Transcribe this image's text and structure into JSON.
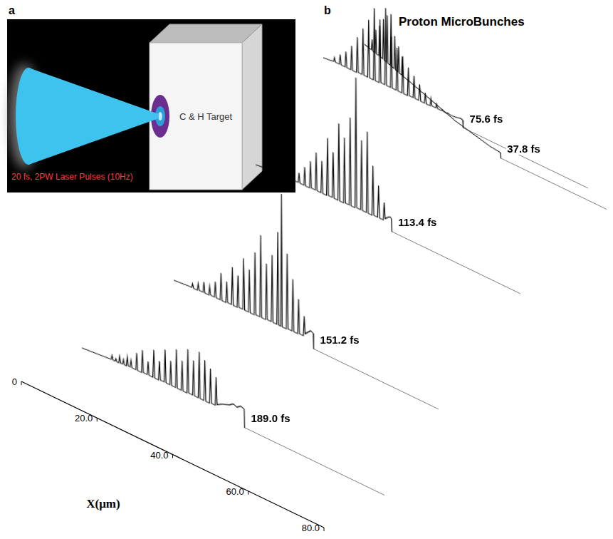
{
  "panel_a": {
    "letter": "a",
    "laser_label": "20 fs, 2PW Laser Pulses (10Hz)",
    "target_label": "C & H Target"
  },
  "chart_data": {
    "letter": "b",
    "type": "line",
    "title": "Proton MicroBunches",
    "x_label": "X(μm)",
    "xlim": [
      0,
      80
    ],
    "xticks": [
      0,
      {
        "value": 20,
        "label": "20.0"
      },
      {
        "value": 40,
        "label": "40.0"
      },
      {
        "value": 60,
        "label": "60.0"
      },
      {
        "value": 80,
        "label": "80.0"
      }
    ],
    "ylim": [
      0,
      100
    ],
    "tick_labels": "x",
    "grid": false,
    "series": [
      {
        "name": "37.8 fs",
        "color": "#000000",
        "x": [
          0,
          1,
          1.8,
          2,
          2.2,
          2.8,
          3,
          3.2,
          3.8,
          4,
          4.2,
          4.8,
          5,
          5.2,
          5.8,
          6,
          6.2,
          6.8,
          7,
          7.2,
          7.8,
          8,
          8.2,
          8.8,
          9,
          9.2,
          9.8,
          10,
          10.2,
          12,
          15,
          18,
          21,
          24,
          27,
          30,
          33,
          35.9,
          36,
          64
        ],
        "values": [
          34,
          33,
          32.5,
          40,
          32,
          31.5,
          48,
          31,
          31,
          52,
          30.5,
          30,
          58,
          29.5,
          29,
          62,
          28.5,
          28,
          64,
          27.5,
          27,
          50,
          26.5,
          26,
          44,
          25.5,
          25,
          38,
          24.5,
          23,
          20,
          17,
          14,
          11,
          9,
          7,
          5,
          4,
          0,
          0
        ]
      },
      {
        "name": "75.6 fs",
        "color": "#000000",
        "x": [
          0,
          1.5,
          2.75,
          3,
          3.25,
          4.25,
          4.5,
          4.75,
          5.75,
          6,
          6.25,
          7.25,
          7.5,
          7.75,
          8.75,
          9,
          9.25,
          10.25,
          10.5,
          10.75,
          11.75,
          12,
          12.25,
          13.25,
          13.5,
          13.75,
          14.75,
          15,
          15.25,
          16.25,
          16.5,
          16.75,
          17.75,
          18,
          18.25,
          19.25,
          19.5,
          19.75,
          20.75,
          21,
          21.25,
          22.25,
          22.5,
          22.75,
          23.75,
          24,
          24.25,
          25.25,
          25.5,
          25.75,
          26.75,
          27,
          27.25,
          28.25,
          28.5,
          28.75,
          29.75,
          30,
          30.25,
          31.25,
          31.5,
          31.75,
          32.75,
          33,
          33.25,
          34.5,
          35.5,
          36.5,
          36.9,
          37,
          70
        ],
        "values": [
          2,
          2.5,
          3,
          6,
          3,
          3,
          10,
          3,
          3,
          14,
          3,
          3,
          20,
          3,
          3,
          28,
          3.5,
          3.5,
          36,
          3.5,
          3.5,
          44,
          3.5,
          3.5,
          54,
          3.5,
          3.5,
          48,
          4,
          4,
          58,
          4,
          4,
          40,
          4,
          4,
          34,
          4,
          4,
          30,
          4,
          4,
          24,
          4.5,
          4.5,
          20,
          4.5,
          4.5,
          16,
          4.5,
          4.5,
          12,
          4.5,
          4.5,
          10,
          5,
          5,
          8,
          5,
          5,
          6,
          5,
          5,
          5.5,
          5,
          5,
          5.5,
          6,
          5.5,
          0,
          0
        ]
      },
      {
        "name": "113.4 fs",
        "color": "#000000",
        "x": [
          0,
          1.5,
          3,
          3.75,
          4,
          4.25,
          5.25,
          5.5,
          5.75,
          6.75,
          7,
          7.25,
          8.25,
          8.5,
          8.75,
          9.75,
          10,
          10.25,
          11.25,
          11.5,
          11.75,
          12.75,
          13,
          13.25,
          14.25,
          14.5,
          14.75,
          15.75,
          16,
          16.25,
          17.25,
          17.5,
          17.75,
          18.75,
          19,
          19.25,
          20.25,
          20.5,
          20.75,
          21.75,
          22,
          22.25,
          23.25,
          23.5,
          23.75,
          24.75,
          25,
          25.25,
          26.25,
          26.5,
          26.75,
          27.75,
          28,
          28.25,
          29.25,
          29.5,
          29.75,
          30.75,
          31,
          31.25,
          32.25,
          32.5,
          32.75,
          33.75,
          34,
          34.25,
          35,
          35.6,
          35.9,
          36,
          70
        ],
        "values": [
          1,
          1.5,
          2,
          2,
          4,
          2,
          2,
          6,
          2,
          2,
          8,
          2.5,
          2.5,
          7,
          2.5,
          2.5,
          12,
          3,
          3,
          10,
          3,
          3,
          16,
          3,
          3,
          22,
          3.5,
          3.5,
          30,
          3.5,
          3.5,
          26,
          3.5,
          3.5,
          44,
          4,
          4,
          36,
          4,
          4,
          58,
          4,
          4,
          50,
          4.5,
          4.5,
          66,
          4.5,
          4.5,
          96,
          5,
          5,
          54,
          5,
          5,
          62,
          5,
          5,
          40,
          5.5,
          5.5,
          28,
          5.5,
          5.5,
          18,
          7,
          9,
          10,
          9,
          0,
          0
        ]
      },
      {
        "name": "151.2 fs",
        "color": "#000000",
        "x": [
          0,
          2,
          4,
          4.75,
          5,
          5.25,
          6.25,
          6.5,
          6.75,
          7.75,
          8,
          8.25,
          9.25,
          9.5,
          9.75,
          10.75,
          11,
          11.25,
          12.25,
          12.5,
          12.75,
          13.75,
          14,
          14.25,
          15.25,
          15.5,
          15.75,
          16.75,
          17,
          17.25,
          18.25,
          18.5,
          18.75,
          19.75,
          20,
          20.25,
          21.25,
          21.5,
          21.75,
          22.75,
          23,
          23.25,
          24.25,
          24.5,
          24.75,
          25.75,
          26,
          26.25,
          27.25,
          27.5,
          27.75,
          28.3,
          28.5,
          28.7,
          29.75,
          30,
          30.25,
          31.25,
          31.5,
          31.75,
          32.75,
          33,
          33.25,
          34.25,
          34.5,
          34.75,
          35.5,
          36.2,
          36.9,
          37,
          70
        ],
        "values": [
          1,
          1.5,
          2,
          2,
          5,
          2,
          2,
          7,
          2.5,
          2.5,
          10,
          2.5,
          2.5,
          9,
          3,
          3,
          14,
          3,
          3,
          22,
          3,
          3,
          18,
          3.5,
          3.5,
          30,
          3.5,
          3.5,
          26,
          4,
          4,
          40,
          4,
          4,
          34,
          4,
          4,
          48,
          4.5,
          4.5,
          62,
          4.5,
          4.5,
          44,
          5,
          5,
          52,
          5,
          5,
          70,
          5,
          5,
          98,
          5,
          5,
          58,
          5.5,
          5.5,
          42,
          5.5,
          5.5,
          30,
          6,
          6,
          20,
          8,
          10,
          12,
          11,
          0,
          0
        ]
      },
      {
        "name": "189.0 fs",
        "color": "#000000",
        "x": [
          0,
          2,
          4,
          6,
          7.75,
          8,
          8.25,
          8.75,
          9,
          9.25,
          9.75,
          10,
          10.25,
          10.75,
          11,
          11.25,
          11.75,
          12,
          12.25,
          12.75,
          13,
          13.25,
          14.25,
          14.5,
          14.75,
          15.75,
          16,
          16.25,
          17.25,
          17.5,
          17.75,
          18.75,
          19,
          19.25,
          20.25,
          20.5,
          20.75,
          21.75,
          22,
          22.25,
          23.25,
          23.5,
          23.75,
          24.75,
          25,
          25.25,
          26.25,
          26.5,
          26.75,
          27.75,
          28,
          28.25,
          29.25,
          29.5,
          29.75,
          30.75,
          31,
          31.25,
          32.25,
          32.5,
          32.75,
          33.75,
          34,
          34.25,
          35.25,
          35.5,
          35.75,
          37,
          38,
          39,
          40,
          41,
          42,
          42.9,
          43,
          80
        ],
        "values": [
          1,
          1.5,
          2,
          2.5,
          3,
          6,
          3,
          3,
          5,
          3,
          3,
          8,
          3.5,
          3.5,
          7,
          3.5,
          3.5,
          10,
          4,
          4,
          9,
          4,
          4,
          16,
          4,
          4,
          20,
          4.5,
          4.5,
          14,
          4.5,
          4.5,
          24,
          4.5,
          4.5,
          18,
          5,
          5,
          28,
          5,
          5,
          22,
          5,
          5,
          32,
          5,
          5,
          26,
          5,
          5,
          36,
          5.5,
          5.5,
          30,
          5.5,
          5.5,
          38,
          5.5,
          5.5,
          34,
          5.5,
          5.5,
          30,
          6,
          6,
          26,
          7,
          9,
          10,
          11,
          13,
          12,
          14,
          13,
          0,
          0
        ]
      }
    ]
  }
}
